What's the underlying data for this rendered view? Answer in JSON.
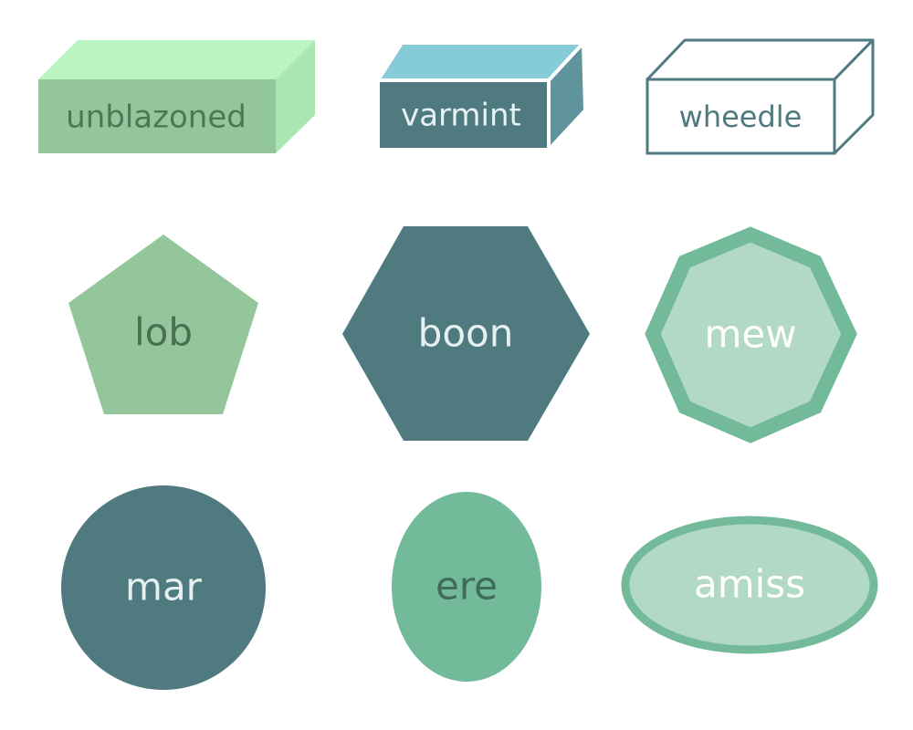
{
  "shapes": {
    "cuboid_1": {
      "label": "unblazoned",
      "front": "#93c69a",
      "top": "#bbf4c2",
      "side": "#a9e6b1",
      "text_color": "#4a7a55"
    },
    "cuboid_2": {
      "label": "varmint",
      "front": "#4f7a80",
      "top": "#86ccd8",
      "side": "#5f949d",
      "text_color": "#e6f2f3",
      "stroke": "#ffffff"
    },
    "cuboid_3": {
      "label": "wheedle",
      "front": "#ffffff",
      "stroke": "#4f7a80",
      "text_color": "#4f7a80"
    },
    "pentagon": {
      "label": "lob",
      "fill": "#93c69a",
      "text_color": "#4a7052"
    },
    "hexagon": {
      "label": "boon",
      "fill": "#4f7a80",
      "text_color": "#e6f0f0"
    },
    "octagon": {
      "label": "mew",
      "fill": "#b1d9c6",
      "stroke": "#73ba9b",
      "text_color": "#ffffff"
    },
    "circle": {
      "label": "mar",
      "fill": "#4f7a80",
      "text_color": "#e6f0f0"
    },
    "ellipse_tall": {
      "label": "ere",
      "fill": "#73ba9b",
      "text_color": "#3f6a5c"
    },
    "ellipse_wide": {
      "label": "amiss",
      "fill": "#b1d9c6",
      "stroke": "#73ba9b",
      "text_color": "#ffffff"
    }
  }
}
